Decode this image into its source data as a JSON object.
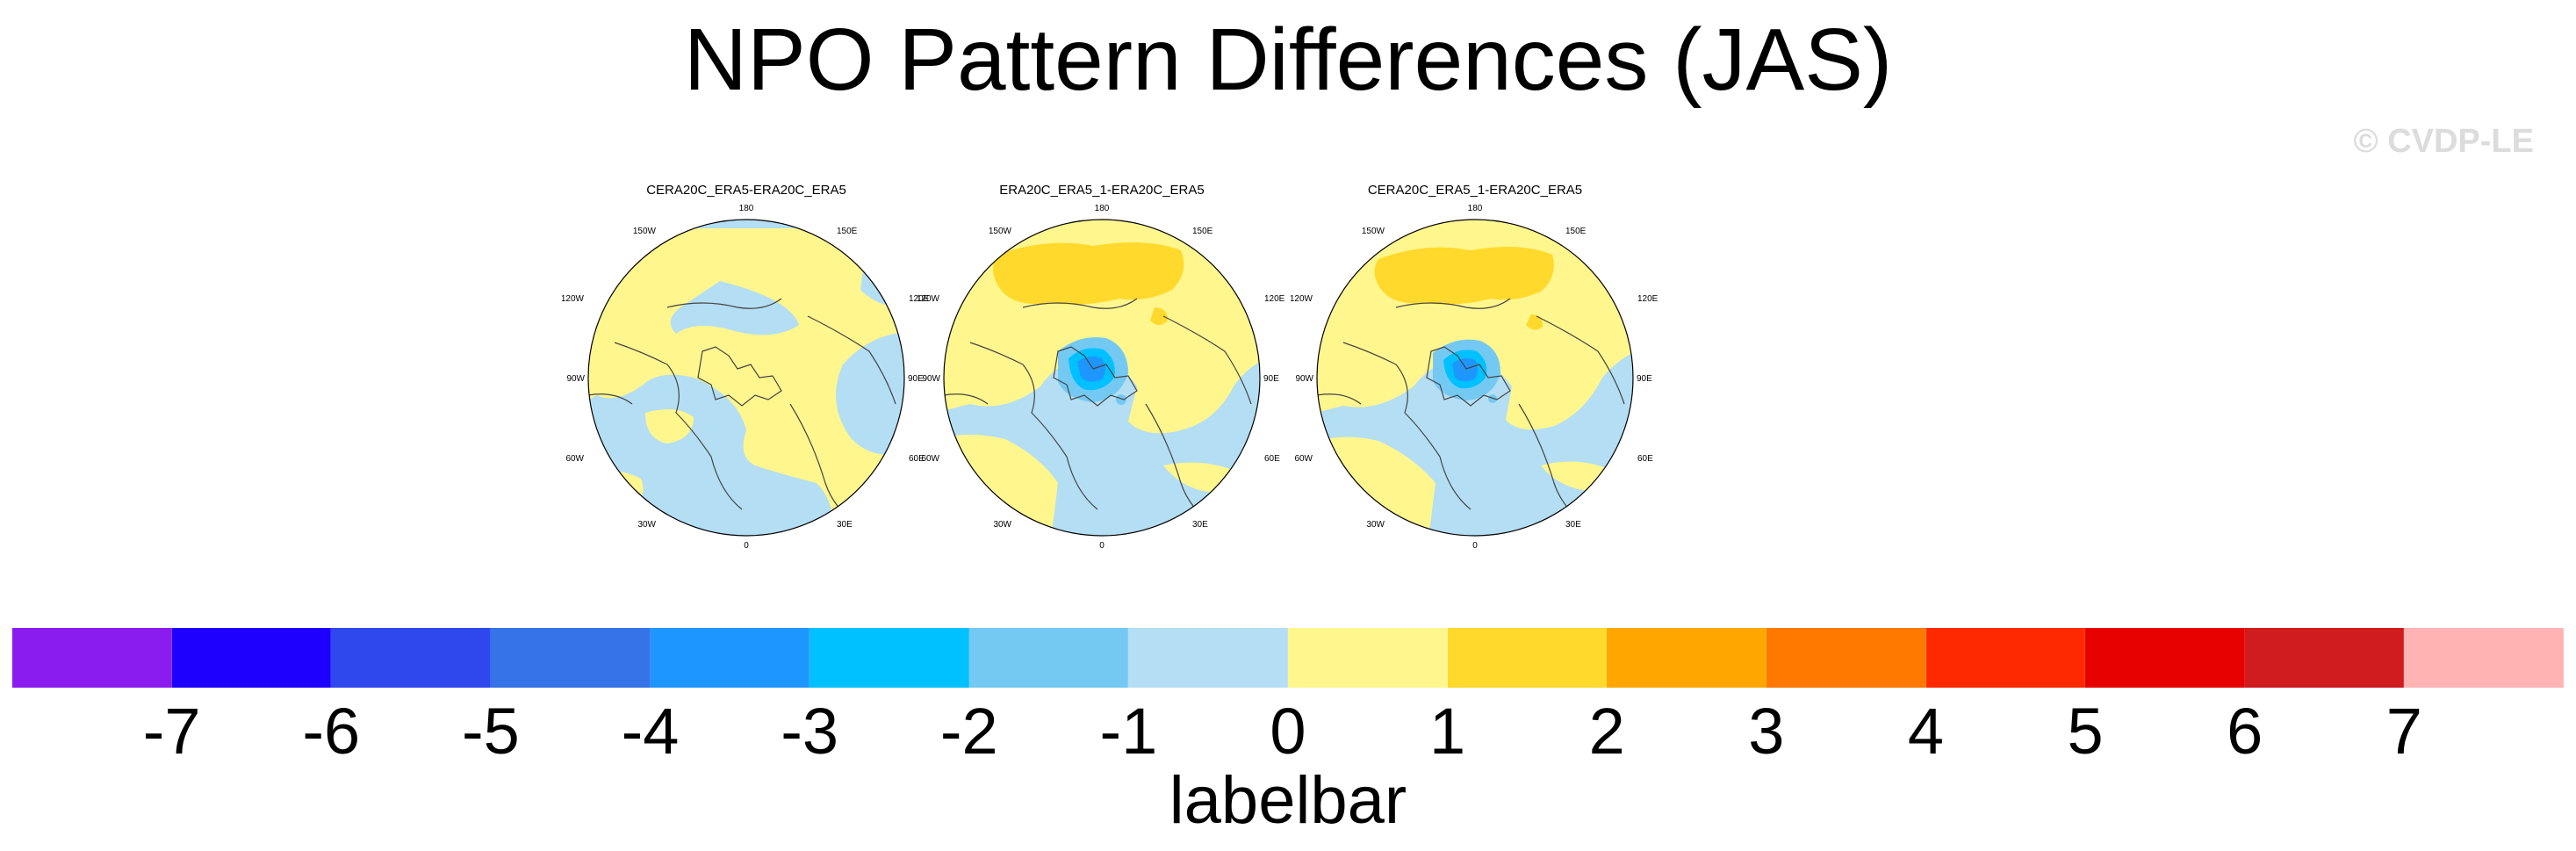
{
  "title": "NPO Pattern Differences (JAS)",
  "watermark": "© CVDP-LE",
  "panels": [
    {
      "title": "CERA20C_ERA5-ERA20C_ERA5"
    },
    {
      "title": "ERA20C_ERA5_1-ERA20C_ERA5"
    },
    {
      "title": "CERA20C_ERA5_1-ERA20C_ERA5"
    }
  ],
  "longitude_labels": {
    "top": "180",
    "upper_left": "150W",
    "upper_right": "150E",
    "left_upper": "120W",
    "right_upper": "120E",
    "left": "90W",
    "right": "90E",
    "left_lower": "60W",
    "right_lower": "60E",
    "lower_left": "30W",
    "lower_right": "30E",
    "bottom": "0"
  },
  "labelbar": {
    "label": "labelbar",
    "colors": [
      "#8a1cf0",
      "#1e00ff",
      "#2f48ee",
      "#3574e8",
      "#1e96ff",
      "#00c1ff",
      "#74c9f3",
      "#b4def3",
      "#fff68e",
      "#ffd92b",
      "#ffa700",
      "#ff7800",
      "#ff2900",
      "#e70000",
      "#d01b1f",
      "#ffb3b3"
    ],
    "tick_labels": [
      "-7",
      "-6",
      "-5",
      "-4",
      "-3",
      "-2",
      "-1",
      "0",
      "1",
      "2",
      "3",
      "4",
      "5",
      "6",
      "7"
    ]
  }
}
